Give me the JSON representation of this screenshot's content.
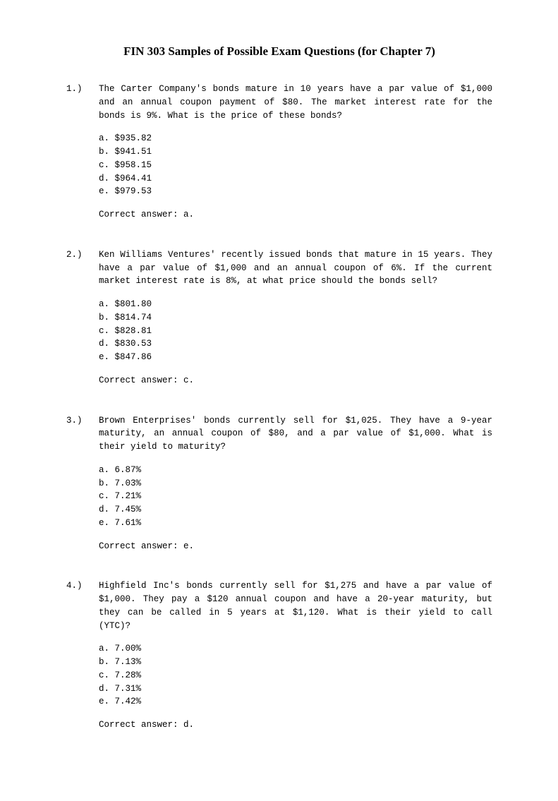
{
  "title": "FIN 303 Samples of Possible Exam Questions (for Chapter 7)",
  "questions": [
    {
      "number": "1.)",
      "text": "The Carter Company's bonds mature in 10 years have a par value of $1,000 and an annual coupon payment of $80.  The market interest rate for the bonds is 9%.  What is the price of these bonds?",
      "options": [
        "a. $935.82",
        "b. $941.51",
        "c. $958.15",
        "d. $964.41",
        "e. $979.53"
      ],
      "answer": "Correct answer: a."
    },
    {
      "number": "2.)",
      "text": "Ken Williams Ventures' recently issued bonds that mature in 15 years.  They have a par value of $1,000 and an annual coupon of 6%.  If the current market interest rate is 8%, at what price should the bonds sell?",
      "options": [
        "a. $801.80",
        "b. $814.74",
        "c. $828.81",
        "d. $830.53",
        "e. $847.86"
      ],
      "answer": "Correct answer: c."
    },
    {
      "number": "3.)",
      "text": "Brown Enterprises' bonds currently sell for $1,025.  They have a 9-year maturity, an annual coupon of $80, and a par value of $1,000.  What is their yield to maturity?",
      "options": [
        "a. 6.87%",
        "b. 7.03%",
        "c. 7.21%",
        "d. 7.45%",
        "e. 7.61%"
      ],
      "answer": "Correct answer: e."
    },
    {
      "number": "4.)",
      "text": "Highfield Inc's bonds currently sell for $1,275 and have a par value of $1,000.  They pay a $120 annual coupon and have a 20-year maturity, but they can be called in 5 years at $1,120.  What is their yield to call (YTC)?",
      "options": [
        "a. 7.00%",
        "b. 7.13%",
        "c. 7.28%",
        "d. 7.31%",
        "e. 7.42%"
      ],
      "answer": "Correct answer: d."
    }
  ]
}
